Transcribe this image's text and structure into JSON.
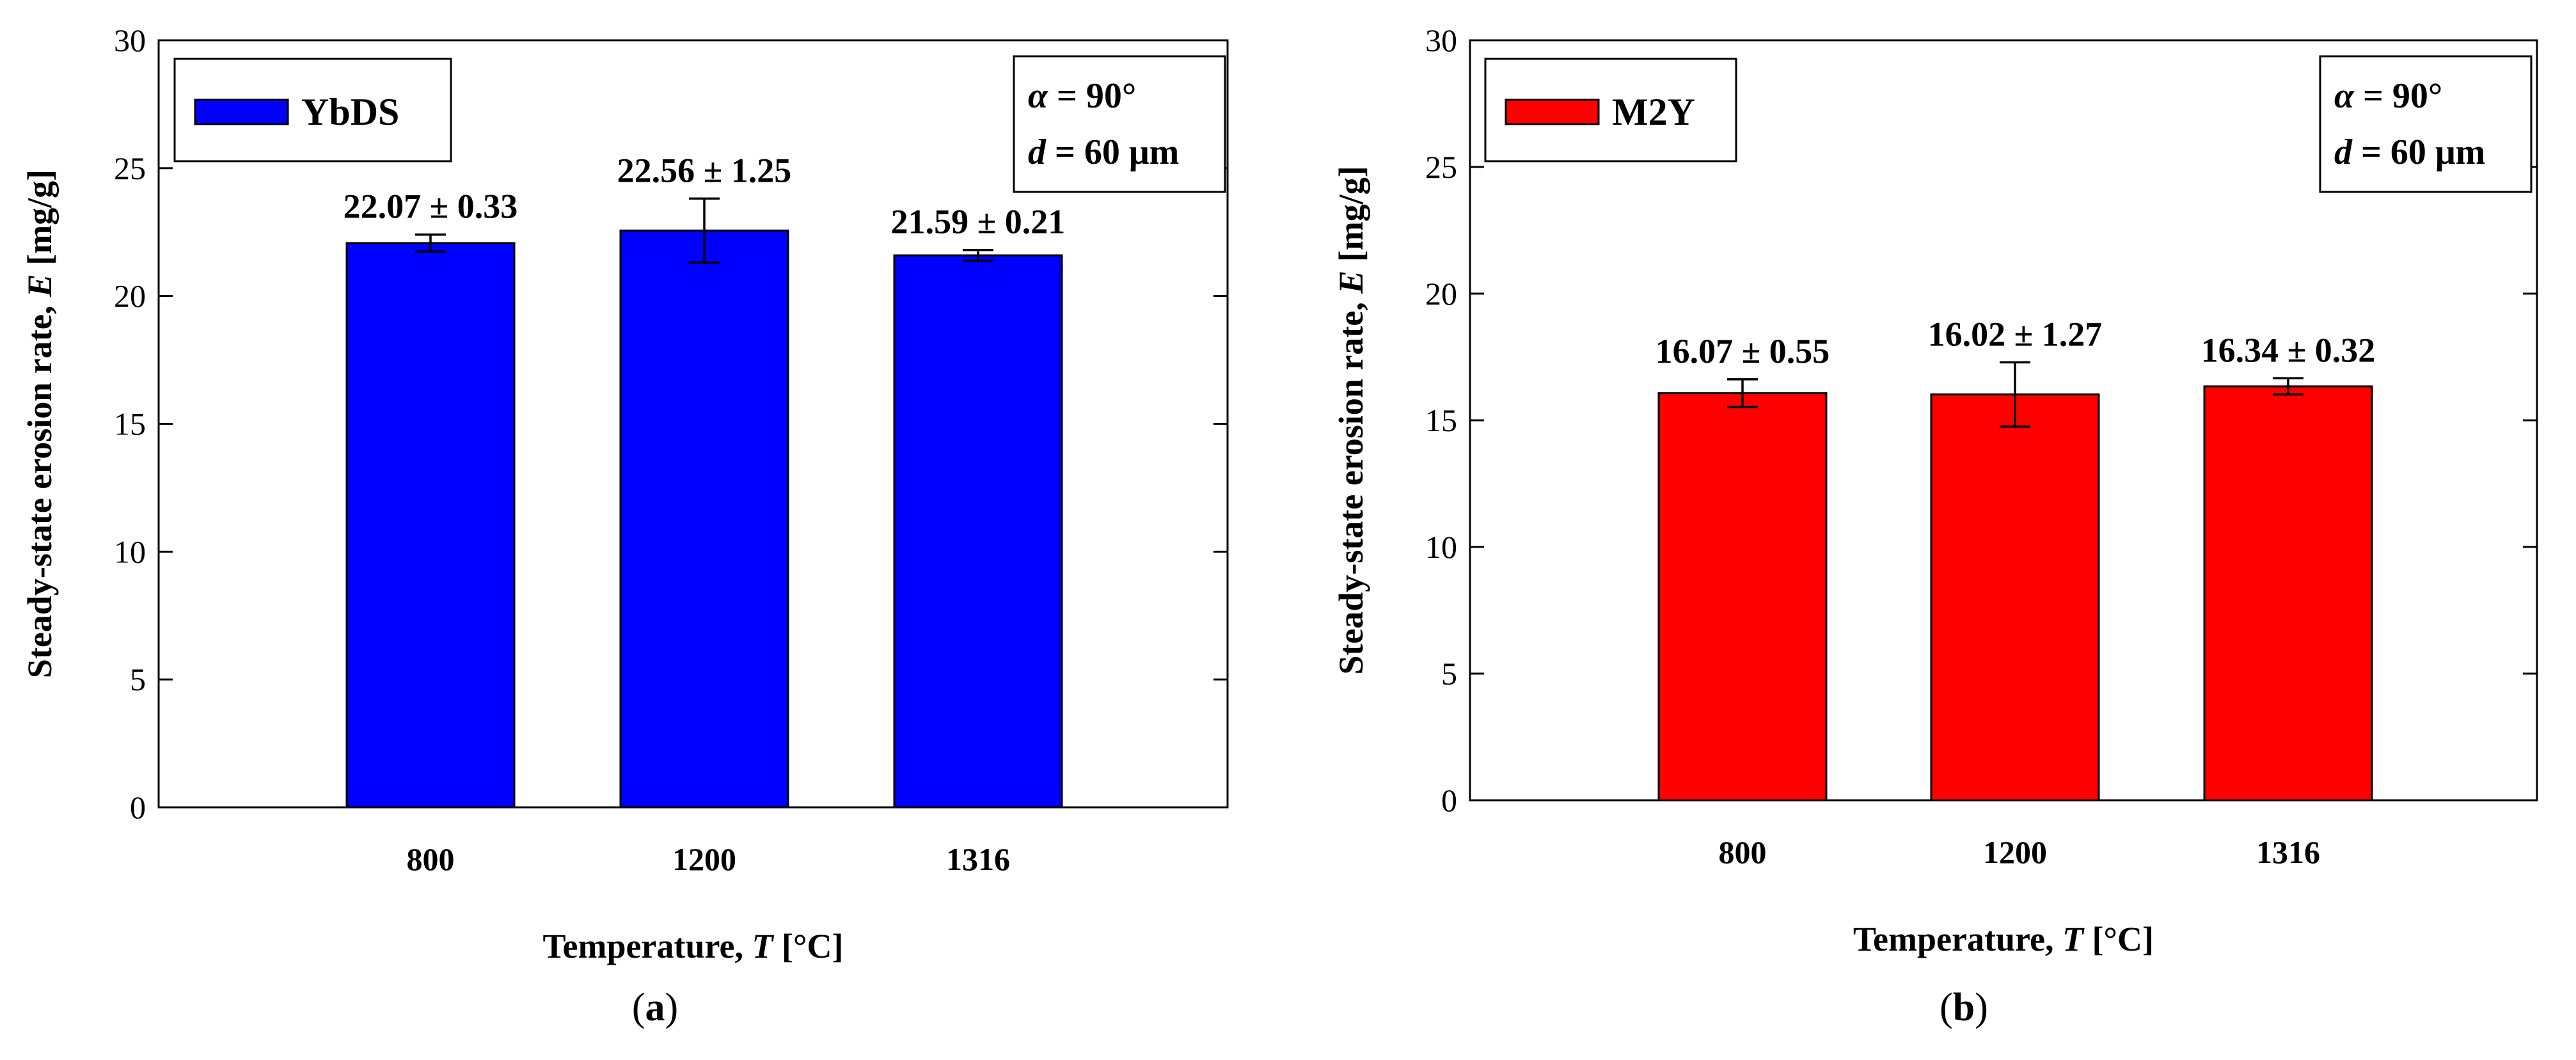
{
  "chart_data": [
    {
      "type": "bar",
      "panel": "a",
      "categories": [
        "800",
        "1200",
        "1316"
      ],
      "series": [
        {
          "name": "YbDS",
          "values": [
            22.07,
            22.56,
            21.59
          ],
          "errors": [
            0.33,
            1.25,
            0.21
          ]
        }
      ],
      "data_labels": [
        "22.07 ± 0.33",
        "22.56 ± 1.25",
        "21.59 ± 0.21"
      ],
      "color": "#0000ff",
      "ylim": [
        0,
        30
      ],
      "yticks": [
        "0",
        "5",
        "10",
        "15",
        "20",
        "25",
        "30"
      ],
      "xlabel": {
        "text": "Temperature, ",
        "var": "T",
        "unit": " [°C]"
      },
      "ylabel": {
        "text": "Steady-state erosion rate, ",
        "var": "E",
        "unit": " [mg/g]"
      },
      "legend": {
        "label": "YbDS",
        "position": "top-left"
      },
      "annotation": {
        "line1_var": "α",
        "line1_val": " = 90°",
        "line2_var": "d",
        "line2_val": " = 60 μm",
        "position": "top-right"
      },
      "caption": {
        "open": "(",
        "letter": "a",
        "close": ")"
      }
    },
    {
      "type": "bar",
      "panel": "b",
      "categories": [
        "800",
        "1200",
        "1316"
      ],
      "series": [
        {
          "name": "M2Y",
          "values": [
            16.07,
            16.02,
            16.34
          ],
          "errors": [
            0.55,
            1.27,
            0.32
          ]
        }
      ],
      "data_labels": [
        "16.07 ± 0.55",
        "16.02 ± 1.27",
        "16.34 ± 0.32"
      ],
      "color": "#ff0000",
      "ylim": [
        0,
        30
      ],
      "yticks": [
        "0",
        "5",
        "10",
        "15",
        "20",
        "25",
        "30"
      ],
      "xlabel": {
        "text": "Temperature, ",
        "var": "T",
        "unit": " [°C]"
      },
      "ylabel": {
        "text": "Steady-state erosion rate, ",
        "var": "E",
        "unit": " [mg/g]"
      },
      "legend": {
        "label": "M2Y",
        "position": "top-left"
      },
      "annotation": {
        "line1_var": "α",
        "line1_val": " = 90°",
        "line2_var": "d",
        "line2_val": " = 60 μm",
        "position": "top-right"
      },
      "caption": {
        "open": "(",
        "letter": "b",
        "close": ")"
      }
    }
  ]
}
